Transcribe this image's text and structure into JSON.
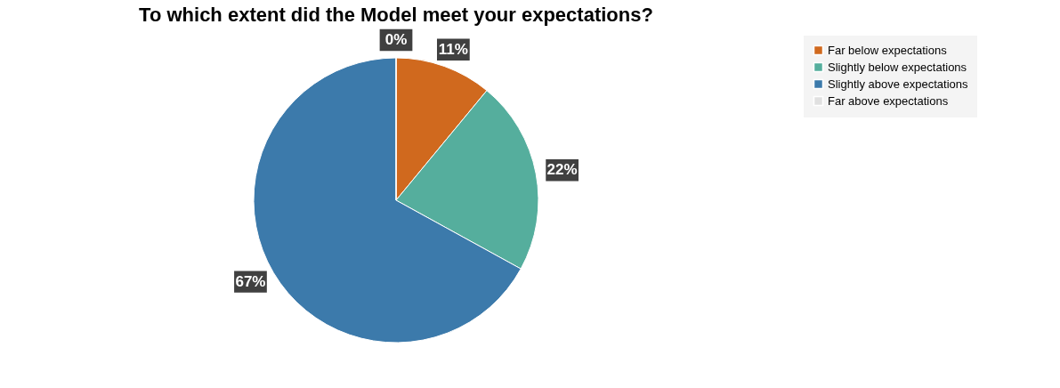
{
  "chart_data": {
    "type": "pie",
    "title": "To which extent did the Model meet your expectations?",
    "categories": [
      "Far below expectations",
      "Slightly below expectations",
      "Slightly above expectations",
      "Far above expectations"
    ],
    "values": [
      11,
      22,
      67,
      0
    ],
    "colors": [
      "#d0691e",
      "#55ae9d",
      "#3c7aab",
      "#e0e0e0"
    ],
    "value_labels": [
      "11%",
      "22%",
      "67%",
      "0%"
    ],
    "legend": "right"
  }
}
